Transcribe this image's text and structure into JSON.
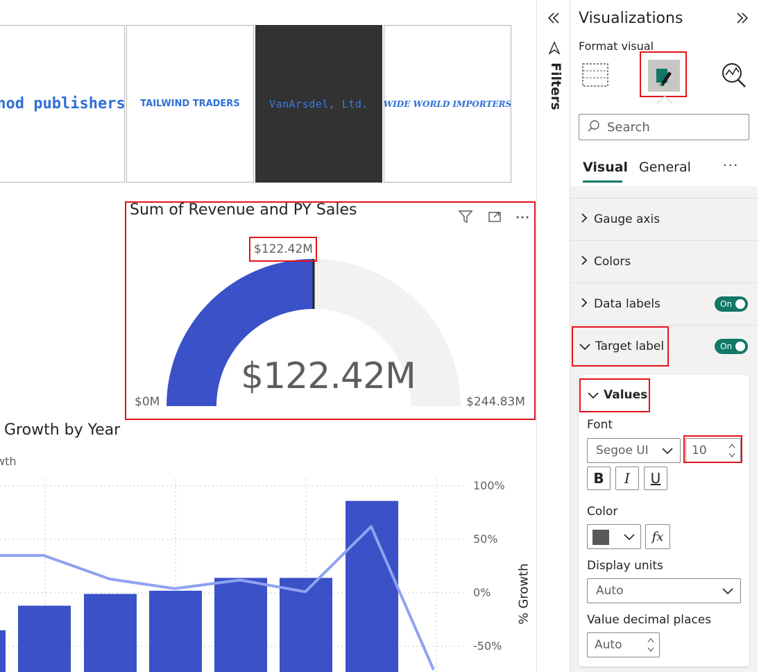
{
  "logos": [
    {
      "text": "nod publishers",
      "bg": "#ffffff"
    },
    {
      "text": "TAILWIND TRADERS",
      "bg": "#ffffff"
    },
    {
      "text": "VanArsdel, Ltd.",
      "bg": "#323232"
    },
    {
      "text": "WIDE WORLD IMPORTERS",
      "bg": "#ffffff"
    }
  ],
  "gauge": {
    "title": "Sum of Revenue and PY Sales",
    "value": 122.42,
    "min": 0,
    "max": 244.83,
    "value_label": "$122.42M",
    "target_label": "$122.42M",
    "min_label": "$0M",
    "max_label": "$244.83M",
    "fill_color": "#3a51c7",
    "track_color": "#f3f2f1"
  },
  "chart_data": {
    "type": "bar",
    "title": "Growth by Year",
    "y2label": "% Growth",
    "y2_ticks": [
      "100%",
      "50%",
      "0%",
      "-50%"
    ],
    "bar_color": "#3a51c7",
    "line_color": "#8fa2f0",
    "bar_values_growth_pct": [
      -35,
      -12,
      -1,
      2,
      14,
      14,
      86
    ],
    "line_values_pct": [
      35,
      35,
      13,
      4,
      12,
      1,
      62,
      -72
    ]
  },
  "filters": {
    "label": "Filters"
  },
  "pane": {
    "title": "Visualizations",
    "subtitle": "Format visual",
    "search_placeholder": "Search",
    "tabs": [
      "Visual",
      "General"
    ],
    "more": "···",
    "sections": [
      {
        "label": "Gauge axis",
        "expanded": false
      },
      {
        "label": "Colors",
        "expanded": false
      },
      {
        "label": "Data labels",
        "expanded": false,
        "toggle": "On"
      },
      {
        "label": "Target label",
        "expanded": true,
        "toggle": "On"
      }
    ],
    "values_card": {
      "title": "Values",
      "font_label": "Font",
      "font_family": "Segoe UI",
      "font_size": "10",
      "bold": "B",
      "italic": "I",
      "underline": "U",
      "color_label": "Color",
      "color_value": "#595959",
      "fx": "fx",
      "display_units_label": "Display units",
      "display_units_value": "Auto",
      "decimal_label": "Value decimal places",
      "decimal_value": "Auto"
    }
  }
}
